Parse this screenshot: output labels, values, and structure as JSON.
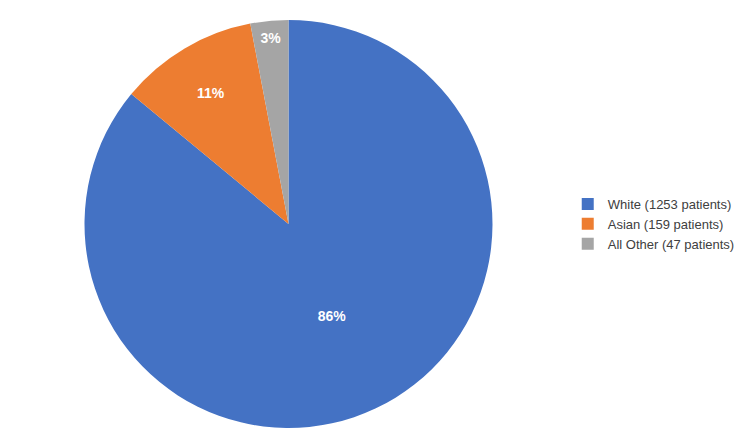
{
  "chart_data": {
    "type": "pie",
    "categories": [
      "White (1253 patients)",
      "Asian (159 patients)",
      "All Other (47 patients)"
    ],
    "values": [
      86,
      11,
      3
    ],
    "value_labels": [
      "86%",
      "11%",
      "3%"
    ],
    "data_labels": true,
    "colors": [
      "#4472C4",
      "#ED7D31",
      "#A5A5A5"
    ],
    "legend": "right"
  }
}
